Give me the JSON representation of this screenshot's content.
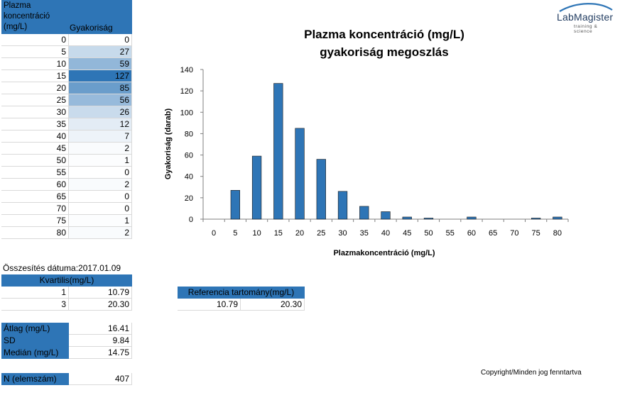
{
  "table": {
    "header_col1": "Plazma koncentráció (mg/L)",
    "header_col2": "Gyakoriság",
    "rows": [
      {
        "x": "0",
        "f": "0"
      },
      {
        "x": "5",
        "f": "27"
      },
      {
        "x": "10",
        "f": "59"
      },
      {
        "x": "15",
        "f": "127"
      },
      {
        "x": "20",
        "f": "85"
      },
      {
        "x": "25",
        "f": "56"
      },
      {
        "x": "30",
        "f": "26"
      },
      {
        "x": "35",
        "f": "12"
      },
      {
        "x": "40",
        "f": "7"
      },
      {
        "x": "45",
        "f": "2"
      },
      {
        "x": "50",
        "f": "1"
      },
      {
        "x": "55",
        "f": "0"
      },
      {
        "x": "60",
        "f": "2"
      },
      {
        "x": "65",
        "f": "0"
      },
      {
        "x": "70",
        "f": "0"
      },
      {
        "x": "75",
        "f": "1"
      },
      {
        "x": "80",
        "f": "2"
      }
    ]
  },
  "summary": {
    "date_label": "Összesítés dátuma:",
    "date_value": "2017.01.09",
    "quartile_header": "Kvartilis(mg/L)",
    "q1_label": "1",
    "q1_value": "10.79",
    "q3_label": "3",
    "q3_value": "20.30",
    "mean_label": "Átlag (mg/L)",
    "mean_value": "16.41",
    "sd_label": "SD",
    "sd_value": "9.84",
    "median_label": "Medián (mg/L)",
    "median_value": "14.75",
    "n_label": "N (elemszám)",
    "n_value": "407"
  },
  "reference": {
    "header": "Referencia tartomány(mg/L)",
    "low": "10.79",
    "high": "20.30"
  },
  "logo": {
    "name": "LabMagister",
    "tagline": "training & science"
  },
  "copyright": "Copyright/Minden jog fenntartva",
  "colors": {
    "bar": "#2e75b6",
    "header": "#2e75b6",
    "axis": "#7f7f7f"
  },
  "chart_data": {
    "type": "bar",
    "title": "Plazma koncentráció (mg/L)",
    "subtitle": "gyakoriság megoszlás",
    "xlabel": "Plazmakoncentráció  (mg/L)",
    "ylabel": "Gyakoriság (darab)",
    "categories": [
      "0",
      "5",
      "10",
      "15",
      "20",
      "25",
      "30",
      "35",
      "40",
      "45",
      "50",
      "55",
      "60",
      "65",
      "70",
      "75",
      "80"
    ],
    "values": [
      0,
      27,
      59,
      127,
      85,
      56,
      26,
      12,
      7,
      2,
      1,
      0,
      2,
      0,
      0,
      1,
      2
    ],
    "ylim": [
      0,
      140
    ],
    "yticks": [
      "0",
      "20",
      "40",
      "60",
      "80",
      "100",
      "120",
      "140"
    ],
    "grid": false,
    "legend": "none"
  }
}
